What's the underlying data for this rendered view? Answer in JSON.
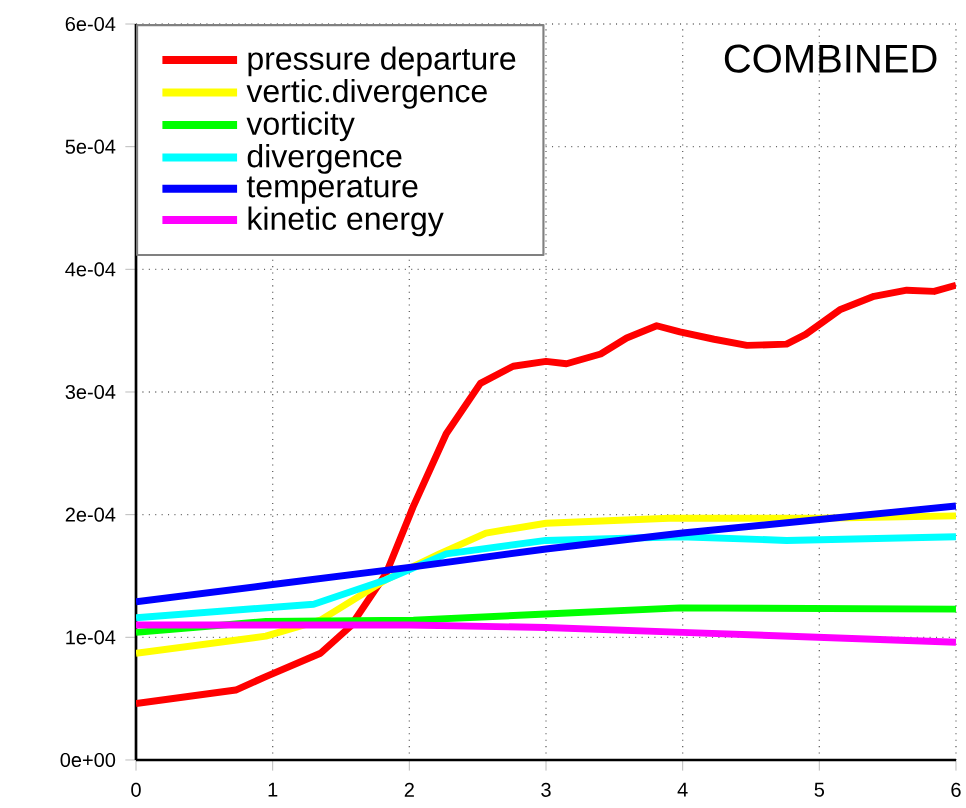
{
  "chart_data": {
    "type": "line",
    "annotations": [
      "COMBINED"
    ],
    "xlim": [
      0,
      6
    ],
    "xticks": [
      0,
      1,
      2,
      3,
      4,
      5,
      6
    ],
    "ylim": [
      0,
      0.0006
    ],
    "yticks": [
      {
        "value": 0,
        "label": "0e+00"
      },
      {
        "value": 0.0001,
        "label": "1e-04"
      },
      {
        "value": 0.0002,
        "label": "2e-04"
      },
      {
        "value": 0.0003,
        "label": "3e-04"
      },
      {
        "value": 0.0004,
        "label": "4e-04"
      },
      {
        "value": 0.0005,
        "label": "5e-04"
      },
      {
        "value": 0.0006,
        "label": "6e-04"
      }
    ],
    "grid": true,
    "legend": "top left",
    "marker": "none",
    "line_style": "solid",
    "series": [
      {
        "name": "pressure departure",
        "color": "#ff0000",
        "x": [
          0,
          0.73,
          0.95,
          1.35,
          1.57,
          1.83,
          2.03,
          2.27,
          2.52,
          2.76,
          3.0,
          3.15,
          3.4,
          3.59,
          3.81,
          3.98,
          4.23,
          4.47,
          4.76,
          4.9,
          5.15,
          5.4,
          5.64,
          5.84,
          6.0
        ],
        "values": [
          4.6e-05,
          5.7e-05,
          6.8e-05,
          8.7e-05,
          0.000109,
          0.000152,
          0.000207,
          0.000266,
          0.000307,
          0.000321,
          0.000325,
          0.000323,
          0.000331,
          0.000344,
          0.000354,
          0.000349,
          0.000343,
          0.000338,
          0.000339,
          0.000347,
          0.000367,
          0.000378,
          0.000383,
          0.000382,
          0.000387
        ]
      },
      {
        "name": "vertic.divergence",
        "color": "#ffff00",
        "x": [
          0,
          0.95,
          1.35,
          1.83,
          2.22,
          2.56,
          3.0,
          3.9,
          5.0,
          6.0
        ],
        "values": [
          8.7e-05,
          0.000101,
          0.000114,
          0.000147,
          0.000168,
          0.000185,
          0.000193,
          0.000197,
          0.000197,
          0.000199
        ]
      },
      {
        "name": "vorticity",
        "color": "#00ff00",
        "x": [
          0,
          0.95,
          2.03,
          3.0,
          3.98,
          6.0
        ],
        "values": [
          0.000104,
          0.000113,
          0.000114,
          0.000119,
          0.000124,
          0.000123
        ]
      },
      {
        "name": "divergence",
        "color": "#00ffff",
        "x": [
          0,
          1.3,
          1.83,
          2.27,
          3.0,
          3.98,
          4.76,
          6.0
        ],
        "values": [
          0.000116,
          0.000127,
          0.000147,
          0.000168,
          0.000179,
          0.000182,
          0.000179,
          0.000182
        ]
      },
      {
        "name": "temperature",
        "color": "#0000ff",
        "x": [
          0,
          1,
          2,
          3,
          4,
          5,
          6
        ],
        "values": [
          0.000129,
          0.000143,
          0.000157,
          0.000172,
          0.000185,
          0.000196,
          0.000207
        ]
      },
      {
        "name": "kinetic energy",
        "color": "#ff00ff",
        "x": [
          0,
          2,
          3,
          4,
          5,
          6
        ],
        "values": [
          0.00011,
          0.00011,
          0.000108,
          0.000104,
          0.0001,
          9.6e-05
        ]
      }
    ]
  }
}
